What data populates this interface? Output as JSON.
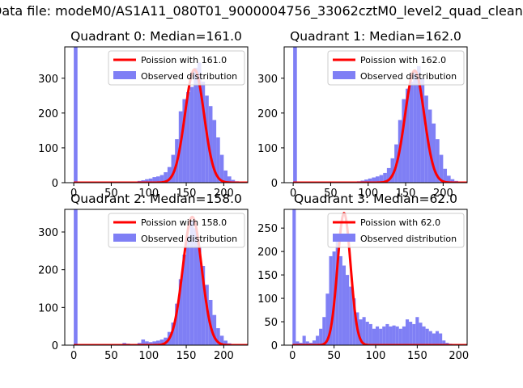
{
  "figure": {
    "suptitle": "Data file: modeM0/AS1A11_080T01_9000004756_33062cztM0_level2_quad_clean"
  },
  "colors": {
    "hist": "#7f7ff5",
    "fit": "#ff0000",
    "axis": "#000000"
  },
  "chart_data": [
    {
      "type": "bar",
      "title": "Quadrant 0: Median=161.0",
      "xlim": [
        -12,
        232
      ],
      "ylim": [
        0,
        390
      ],
      "xticks": [
        0,
        50,
        100,
        150,
        200
      ],
      "yticks": [
        0,
        100,
        200,
        300
      ],
      "bin_width": 5,
      "bins_start": [
        0,
        75,
        80,
        85,
        90,
        95,
        100,
        105,
        110,
        115,
        120,
        125,
        130,
        135,
        140,
        145,
        150,
        155,
        160,
        165,
        170,
        175,
        180,
        185,
        190,
        195,
        200,
        205,
        210,
        215,
        220
      ],
      "counts": [
        390,
        2,
        3,
        5,
        7,
        10,
        12,
        16,
        18,
        22,
        30,
        45,
        80,
        125,
        205,
        240,
        260,
        275,
        330,
        345,
        290,
        250,
        220,
        180,
        130,
        80,
        35,
        18,
        8,
        4,
        2
      ],
      "fit": {
        "mean": 161.0,
        "peak": 325
      },
      "legend": [
        "Poission with 161.0",
        "Observed distribution"
      ]
    },
    {
      "type": "bar",
      "title": "Quadrant 1: Median=162.0",
      "xlim": [
        -12,
        232
      ],
      "ylim": [
        0,
        390
      ],
      "xticks": [
        0,
        50,
        100,
        150,
        200
      ],
      "yticks": [
        0,
        100,
        200,
        300
      ],
      "bin_width": 5,
      "bins_start": [
        0,
        75,
        80,
        85,
        90,
        95,
        100,
        105,
        110,
        115,
        120,
        125,
        130,
        135,
        140,
        145,
        150,
        155,
        160,
        165,
        170,
        175,
        180,
        185,
        190,
        195,
        200,
        205,
        210,
        215,
        220
      ],
      "counts": [
        390,
        2,
        3,
        4,
        6,
        9,
        12,
        15,
        18,
        22,
        28,
        42,
        70,
        110,
        180,
        240,
        270,
        290,
        320,
        335,
        300,
        250,
        210,
        170,
        125,
        80,
        40,
        20,
        10,
        5,
        2
      ],
      "fit": {
        "mean": 162.0,
        "peak": 322
      },
      "legend": [
        "Poission with 162.0",
        "Observed distribution"
      ]
    },
    {
      "type": "bar",
      "title": "Quadrant 2: Median=158.0",
      "xlim": [
        -12,
        232
      ],
      "ylim": [
        0,
        360
      ],
      "xticks": [
        0,
        50,
        100,
        150,
        200
      ],
      "yticks": [
        0,
        100,
        200,
        300
      ],
      "bin_width": 5,
      "bins_start": [
        0,
        60,
        65,
        70,
        75,
        80,
        85,
        90,
        95,
        100,
        105,
        110,
        115,
        120,
        125,
        130,
        135,
        140,
        145,
        150,
        155,
        160,
        165,
        170,
        175,
        180,
        185,
        190,
        195,
        200,
        205,
        210
      ],
      "counts": [
        360,
        3,
        6,
        4,
        3,
        3,
        6,
        15,
        10,
        8,
        10,
        12,
        15,
        20,
        35,
        60,
        110,
        175,
        240,
        290,
        330,
        310,
        260,
        210,
        160,
        120,
        80,
        45,
        25,
        12,
        5,
        2
      ],
      "fit": {
        "mean": 158.0,
        "peak": 340
      },
      "legend": [
        "Poission with 158.0",
        "Observed distribution"
      ]
    },
    {
      "type": "bar",
      "title": "Quadrant 3: Median=62.0",
      "xlim": [
        -10,
        210
      ],
      "ylim": [
        0,
        290
      ],
      "xticks": [
        0,
        50,
        100,
        150,
        200
      ],
      "yticks": [
        0,
        50,
        100,
        150,
        200,
        250
      ],
      "bin_width": 4,
      "bins_start": [
        0,
        4,
        8,
        12,
        16,
        20,
        24,
        28,
        32,
        36,
        40,
        44,
        48,
        52,
        56,
        60,
        64,
        68,
        72,
        76,
        80,
        84,
        88,
        92,
        96,
        100,
        104,
        108,
        112,
        116,
        120,
        124,
        128,
        132,
        136,
        140,
        144,
        148,
        152,
        156,
        160,
        164,
        168,
        172,
        176,
        180,
        184,
        188,
        192,
        196
      ],
      "counts": [
        290,
        8,
        5,
        20,
        8,
        5,
        10,
        20,
        35,
        60,
        110,
        190,
        200,
        225,
        190,
        170,
        150,
        125,
        100,
        70,
        55,
        60,
        50,
        45,
        35,
        40,
        35,
        40,
        45,
        40,
        42,
        40,
        35,
        40,
        55,
        50,
        45,
        60,
        48,
        40,
        35,
        30,
        25,
        30,
        25,
        10,
        5,
        3,
        2,
        1
      ],
      "fit": {
        "mean": 62.0,
        "peak": 282
      },
      "legend": [
        "Poission with 62.0",
        "Observed distribution"
      ]
    }
  ]
}
